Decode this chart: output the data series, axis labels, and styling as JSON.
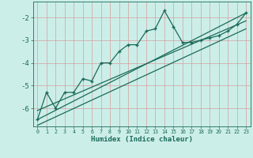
{
  "xlabel": "Humidex (Indice chaleur)",
  "bg_color": "#cceee8",
  "grid_color": "#d4a0a0",
  "line_color": "#1a6b5a",
  "xlim": [
    -0.5,
    23.5
  ],
  "ylim": [
    -6.8,
    -1.3
  ],
  "yticks": [
    -6,
    -5,
    -4,
    -3,
    -2
  ],
  "xticks": [
    0,
    1,
    2,
    3,
    4,
    5,
    6,
    7,
    8,
    9,
    10,
    11,
    12,
    13,
    14,
    15,
    16,
    17,
    18,
    19,
    20,
    21,
    22,
    23
  ],
  "data_x": [
    0,
    1,
    2,
    3,
    4,
    5,
    6,
    7,
    8,
    9,
    10,
    11,
    12,
    13,
    14,
    15,
    16,
    17,
    18,
    19,
    20,
    21,
    22,
    23
  ],
  "data_y": [
    -6.5,
    -5.3,
    -6.0,
    -5.3,
    -5.3,
    -4.7,
    -4.8,
    -4.0,
    -4.0,
    -3.5,
    -3.2,
    -3.2,
    -2.6,
    -2.5,
    -1.7,
    -2.4,
    -3.1,
    -3.1,
    -3.0,
    -2.9,
    -2.8,
    -2.6,
    -2.3,
    -1.8
  ],
  "line1_x": [
    0,
    23
  ],
  "line1_y": [
    -6.5,
    -1.8
  ],
  "line2_x": [
    0,
    23
  ],
  "line2_y": [
    -6.1,
    -2.15
  ],
  "line3_x": [
    0,
    23
  ],
  "line3_y": [
    -6.75,
    -2.5
  ]
}
